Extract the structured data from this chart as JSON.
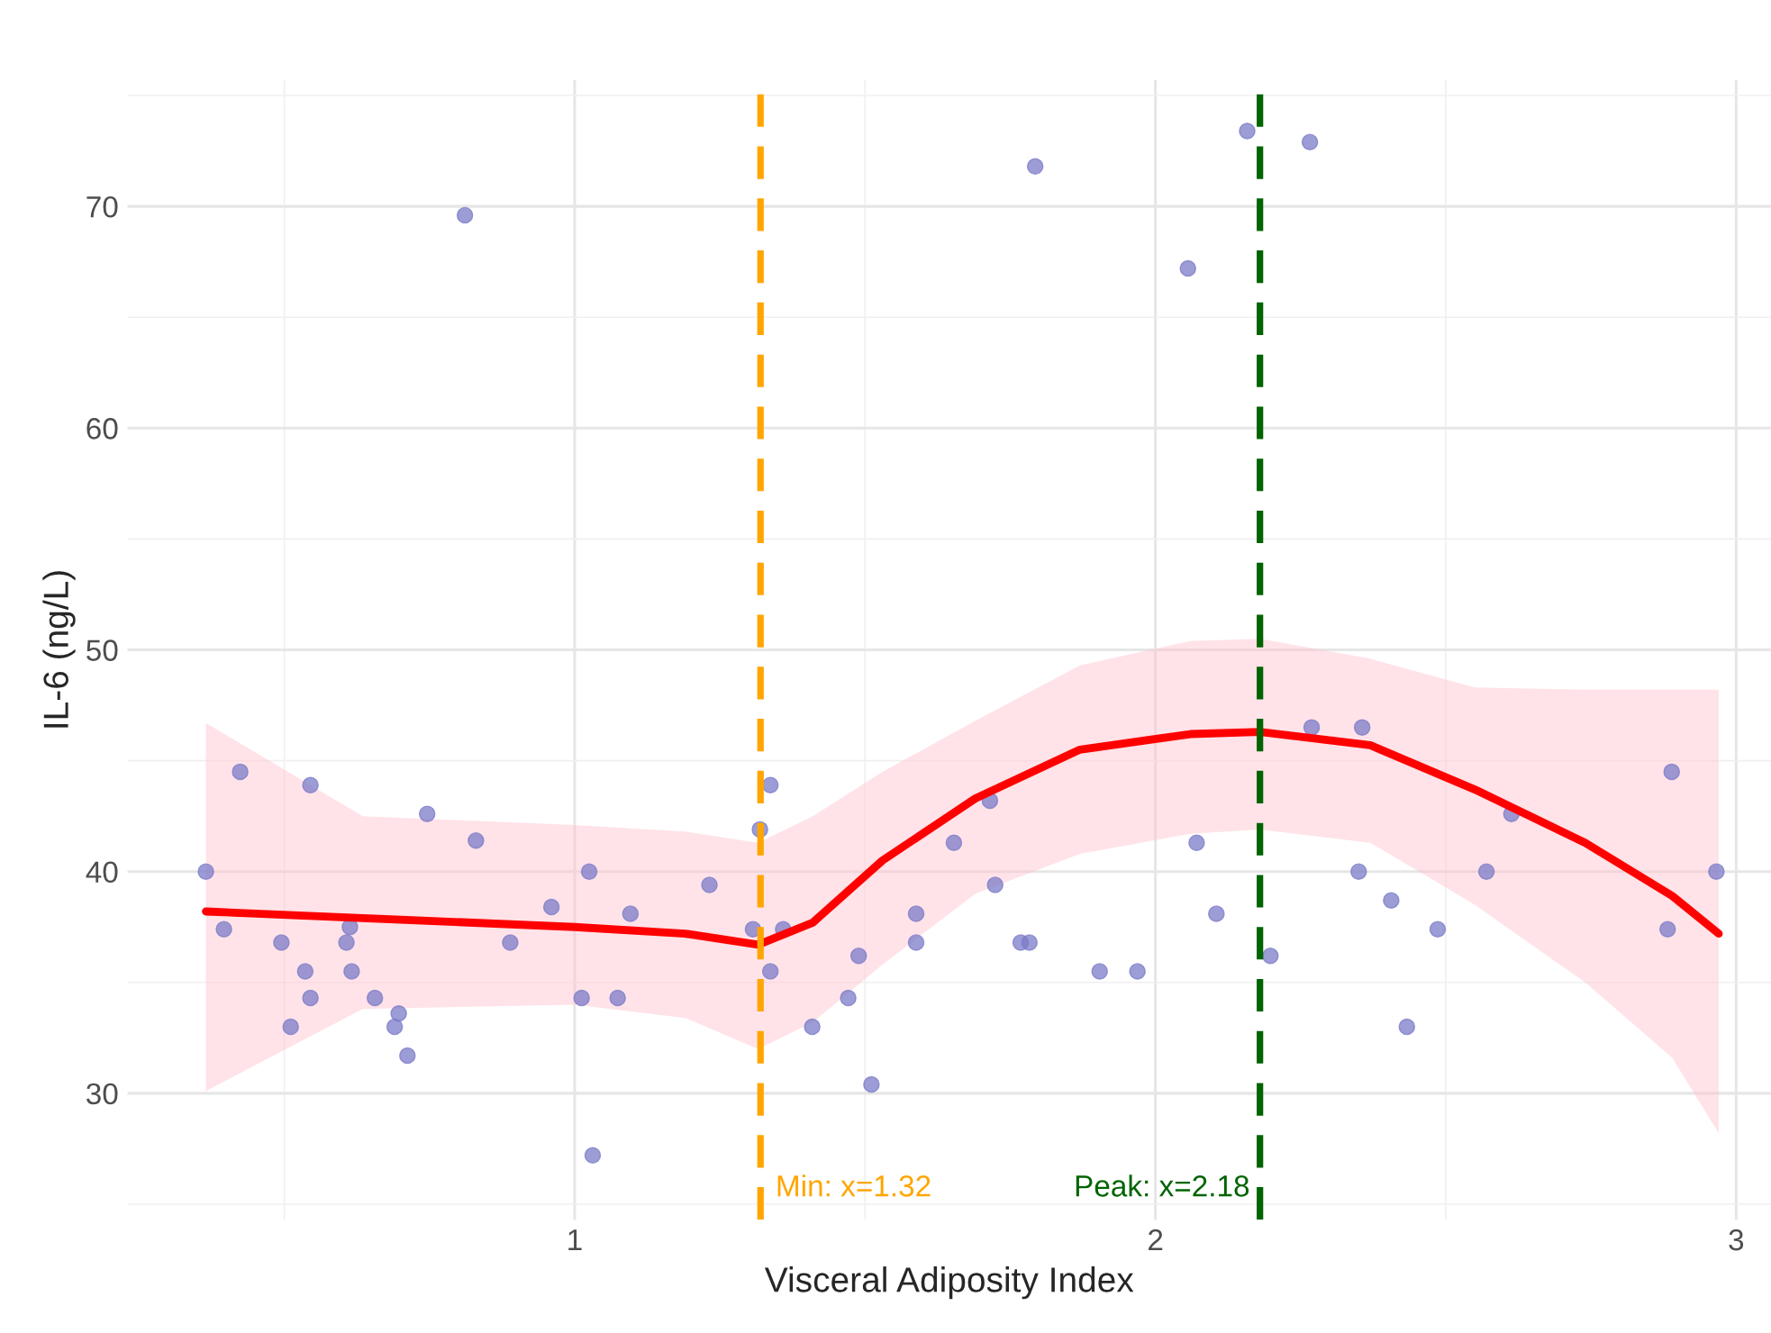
{
  "chart_data": {
    "type": "scatter",
    "xlabel": "Visceral Adiposity Index",
    "ylabel": "IL-6 (ng/L)",
    "xlim": [
      0.23,
      3.06
    ],
    "ylim": [
      24.3,
      75.7
    ],
    "xticks": [
      1,
      2,
      3
    ],
    "yticks": [
      30,
      40,
      50,
      60,
      70
    ],
    "grid": true,
    "marker": "circle",
    "series": [
      {
        "color": "#7b7bc8",
        "x": [
          0.365,
          0.396,
          0.424,
          0.495,
          0.511,
          0.536,
          0.545,
          0.545,
          0.607,
          0.613,
          0.616,
          0.656,
          0.69,
          0.697,
          0.712,
          0.746,
          0.811,
          0.83,
          0.889,
          0.96,
          1.012,
          1.025,
          1.031,
          1.074,
          1.096,
          1.232,
          1.307,
          1.319,
          1.337,
          1.337,
          1.359,
          1.409,
          1.471,
          1.489,
          1.511,
          1.588,
          1.588,
          1.653,
          1.715,
          1.724,
          1.768,
          1.783,
          1.793,
          1.904,
          1.969,
          2.056,
          2.071,
          2.105,
          2.158,
          2.198,
          2.266,
          2.269,
          2.35,
          2.356,
          2.406,
          2.433,
          2.486,
          2.57,
          2.613,
          2.882,
          2.889,
          2.966
        ],
        "values": [
          40.0,
          37.4,
          44.5,
          36.8,
          33.0,
          35.5,
          43.9,
          34.3,
          36.8,
          37.5,
          35.5,
          34.3,
          33.0,
          33.6,
          31.7,
          42.6,
          69.6,
          41.4,
          36.8,
          38.4,
          34.3,
          40.0,
          27.2,
          34.3,
          38.1,
          39.4,
          37.4,
          41.9,
          43.9,
          35.5,
          37.4,
          33.0,
          34.3,
          36.2,
          30.4,
          38.1,
          36.8,
          41.3,
          43.2,
          39.4,
          36.8,
          36.8,
          71.8,
          35.5,
          35.5,
          67.2,
          41.3,
          38.1,
          73.4,
          36.2,
          72.9,
          46.5,
          40.0,
          46.5,
          38.7,
          33.0,
          37.4,
          40.0,
          42.6,
          37.4,
          44.5,
          40.0
        ]
      },
      {
        "type": "line",
        "marker": "none",
        "color": "#ff0000",
        "x": [
          0.365,
          0.635,
          1.0,
          1.19,
          1.316,
          1.41,
          1.53,
          1.69,
          1.87,
          2.06,
          2.18,
          2.37,
          2.55,
          2.74,
          2.89,
          2.97
        ],
        "values": [
          38.2,
          37.9,
          37.5,
          37.2,
          36.7,
          37.7,
          40.5,
          43.3,
          45.5,
          46.2,
          46.3,
          45.7,
          43.7,
          41.3,
          38.9,
          37.2
        ],
        "upper": [
          46.7,
          42.5,
          42.1,
          41.8,
          41.3,
          42.5,
          44.5,
          46.8,
          49.3,
          50.4,
          50.5,
          49.6,
          48.3,
          48.2,
          48.2,
          48.2
        ],
        "lower": [
          30.1,
          33.8,
          34.0,
          33.4,
          32.0,
          33.2,
          35.8,
          39.0,
          40.8,
          41.7,
          41.9,
          41.3,
          38.5,
          35.0,
          31.6,
          28.2
        ]
      }
    ],
    "ref_lines": [
      {
        "axis": "x",
        "value": 1.32,
        "label": "Min: x=1.32",
        "color": "#ffa500",
        "line_style": "dashed"
      },
      {
        "axis": "x",
        "value": 2.18,
        "label": "Peak: x=2.18",
        "color": "#006400",
        "line_style": "dashed"
      }
    ]
  }
}
